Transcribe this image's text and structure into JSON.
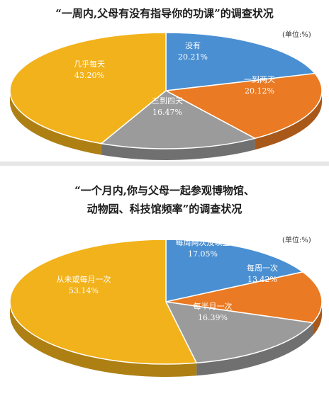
{
  "charts": [
    {
      "title": "“一周内,父母有没有指导你的功课”的调查状况",
      "unit": "(单位:%)"
    },
    {
      "title_line1": "“一个月内,你与父母一起参观博物馆、",
      "title_line2": "动物园、科技馆频率”的调查状况",
      "unit": "(单位:%)"
    }
  ],
  "chart_data": [
    {
      "type": "pie",
      "title": "“一周内,父母有没有指导你的功课”的调查状况",
      "unit": "%",
      "slices": [
        {
          "label": "没有",
          "value": 20.21,
          "value_text": "20.21%",
          "color": "#4a8fd2"
        },
        {
          "label": "一到两天",
          "value": 20.12,
          "value_text": "20.12%",
          "color": "#ea7a23"
        },
        {
          "label": "三到四天",
          "value": 16.47,
          "value_text": "16.47%",
          "color": "#9b9b9b"
        },
        {
          "label": "几乎每天",
          "value": 43.2,
          "value_text": "43.20%",
          "color": "#f2b21b"
        }
      ]
    },
    {
      "type": "pie",
      "title": "“一个月内,你与父母一起参观博物馆、动物园、科技馆频率”的调查状况",
      "unit": "%",
      "slices": [
        {
          "label": "每周两次及以上",
          "value": 17.05,
          "value_text": "17.05%",
          "color": "#4a8fd2"
        },
        {
          "label": "每周一次",
          "value": 13.42,
          "value_text": "13.42%",
          "color": "#ea7a23"
        },
        {
          "label": "每半月一次",
          "value": 16.39,
          "value_text": "16.39%",
          "color": "#9b9b9b"
        },
        {
          "label": "从未或每月一次",
          "value": 53.14,
          "value_text": "53.14%",
          "color": "#f2b21b"
        }
      ]
    }
  ]
}
